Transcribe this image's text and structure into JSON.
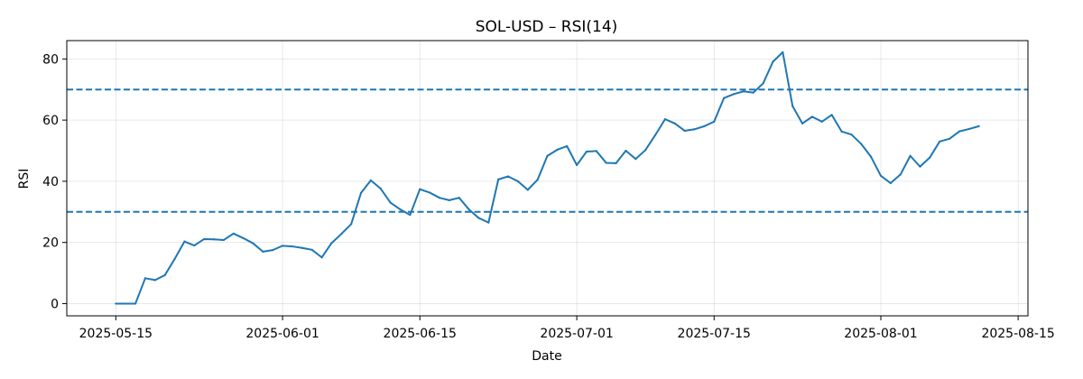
{
  "chart_data": {
    "type": "line",
    "title": "SOL-USD – RSI(14)",
    "xlabel": "Date",
    "ylabel": "RSI",
    "xlim": [
      "2025-05-10",
      "2025-08-16"
    ],
    "ylim": [
      -4,
      86
    ],
    "grid": true,
    "x_ticks": [
      "2025-05-15",
      "2025-06-01",
      "2025-06-15",
      "2025-07-01",
      "2025-07-15",
      "2025-08-01",
      "2025-08-15"
    ],
    "y_ticks": [
      0,
      20,
      40,
      60,
      80
    ],
    "reference_lines": [
      {
        "y": 70,
        "style": "dashed",
        "color": "#1f77b4"
      },
      {
        "y": 30,
        "style": "dashed",
        "color": "#1f77b4"
      }
    ],
    "series": [
      {
        "color": "#1f77b4",
        "points": [
          [
            "2025-05-15",
            0
          ],
          [
            "2025-05-16",
            0
          ],
          [
            "2025-05-17",
            0
          ],
          [
            "2025-05-18",
            8.3
          ],
          [
            "2025-05-19",
            7.7
          ],
          [
            "2025-05-20",
            9.3
          ],
          [
            "2025-05-21",
            14.6
          ],
          [
            "2025-05-22",
            20.3
          ],
          [
            "2025-05-23",
            19.0
          ],
          [
            "2025-05-24",
            21.1
          ],
          [
            "2025-05-25",
            21.0
          ],
          [
            "2025-05-26",
            20.8
          ],
          [
            "2025-05-27",
            22.9
          ],
          [
            "2025-05-28",
            21.4
          ],
          [
            "2025-05-29",
            19.7
          ],
          [
            "2025-05-30",
            17.0
          ],
          [
            "2025-05-31",
            17.5
          ],
          [
            "2025-06-01",
            18.9
          ],
          [
            "2025-06-02",
            18.7
          ],
          [
            "2025-06-03",
            18.2
          ],
          [
            "2025-06-04",
            17.6
          ],
          [
            "2025-06-05",
            15.1
          ],
          [
            "2025-06-06",
            19.8
          ],
          [
            "2025-06-07",
            22.8
          ],
          [
            "2025-06-08",
            26.0
          ],
          [
            "2025-06-09",
            36.2
          ],
          [
            "2025-06-10",
            40.3
          ],
          [
            "2025-06-11",
            37.6
          ],
          [
            "2025-06-12",
            33.0
          ],
          [
            "2025-06-13",
            30.8
          ],
          [
            "2025-06-14",
            29.0
          ],
          [
            "2025-06-15",
            37.4
          ],
          [
            "2025-06-16",
            36.3
          ],
          [
            "2025-06-17",
            34.6
          ],
          [
            "2025-06-18",
            33.8
          ],
          [
            "2025-06-19",
            34.6
          ],
          [
            "2025-06-20",
            30.8
          ],
          [
            "2025-06-21",
            28.0
          ],
          [
            "2025-06-22",
            26.5
          ],
          [
            "2025-06-23",
            40.6
          ],
          [
            "2025-06-24",
            41.6
          ],
          [
            "2025-06-25",
            40.0
          ],
          [
            "2025-06-26",
            37.2
          ],
          [
            "2025-06-27",
            40.5
          ],
          [
            "2025-06-28",
            48.3
          ],
          [
            "2025-06-29",
            50.3
          ],
          [
            "2025-06-30",
            51.5
          ],
          [
            "2025-07-01",
            45.3
          ],
          [
            "2025-07-02",
            49.7
          ],
          [
            "2025-07-03",
            49.9
          ],
          [
            "2025-07-04",
            46.0
          ],
          [
            "2025-07-05",
            45.9
          ],
          [
            "2025-07-06",
            50.0
          ],
          [
            "2025-07-07",
            47.3
          ],
          [
            "2025-07-08",
            50.2
          ],
          [
            "2025-07-09",
            55.1
          ],
          [
            "2025-07-10",
            60.3
          ],
          [
            "2025-07-11",
            58.9
          ],
          [
            "2025-07-12",
            56.5
          ],
          [
            "2025-07-13",
            57.0
          ],
          [
            "2025-07-14",
            58.0
          ],
          [
            "2025-07-15",
            59.5
          ],
          [
            "2025-07-16",
            67.2
          ],
          [
            "2025-07-17",
            68.5
          ],
          [
            "2025-07-18",
            69.4
          ],
          [
            "2025-07-19",
            69.0
          ],
          [
            "2025-07-20",
            72.0
          ],
          [
            "2025-07-21",
            79.1
          ],
          [
            "2025-07-22",
            82.2
          ],
          [
            "2025-07-23",
            64.6
          ],
          [
            "2025-07-24",
            58.9
          ],
          [
            "2025-07-25",
            61.1
          ],
          [
            "2025-07-26",
            59.5
          ],
          [
            "2025-07-27",
            61.7
          ],
          [
            "2025-07-28",
            56.3
          ],
          [
            "2025-07-29",
            55.3
          ],
          [
            "2025-07-30",
            52.2
          ],
          [
            "2025-07-31",
            48.0
          ],
          [
            "2025-08-01",
            41.8
          ],
          [
            "2025-08-02",
            39.4
          ],
          [
            "2025-08-03",
            42.2
          ],
          [
            "2025-08-04",
            48.3
          ],
          [
            "2025-08-05",
            44.8
          ],
          [
            "2025-08-06",
            47.8
          ],
          [
            "2025-08-07",
            53.0
          ],
          [
            "2025-08-08",
            53.9
          ],
          [
            "2025-08-09",
            56.3
          ],
          [
            "2025-08-10",
            57.1
          ],
          [
            "2025-08-11",
            58.0
          ]
        ]
      }
    ]
  }
}
